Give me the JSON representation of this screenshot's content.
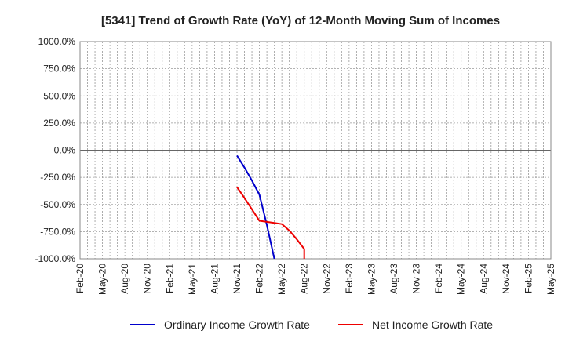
{
  "chart_data": {
    "type": "line",
    "title": "[5341]  Trend of Growth Rate (YoY) of 12-Month Moving Sum of Incomes",
    "xlabel": "",
    "ylabel": "",
    "ylim": [
      -1000,
      1000
    ],
    "y_ticks": [
      1000,
      750,
      500,
      250,
      0,
      -250,
      -500,
      -750,
      -1000
    ],
    "y_tick_labels": [
      "1000.0%",
      "750.0%",
      "500.0%",
      "250.0%",
      "0.0%",
      "-250.0%",
      "-500.0%",
      "-750.0%",
      "-1000.0%"
    ],
    "x_tick_labels": [
      "Feb-20",
      "May-20",
      "Aug-20",
      "Nov-20",
      "Feb-21",
      "May-21",
      "Aug-21",
      "Nov-21",
      "Feb-22",
      "May-22",
      "Aug-22",
      "Nov-22",
      "Feb-23",
      "May-23",
      "Aug-23",
      "Nov-23",
      "Feb-24",
      "May-24",
      "Aug-24",
      "Nov-24",
      "Feb-25",
      "May-25"
    ],
    "grid": true,
    "legend_position": "bottom",
    "series": [
      {
        "name": "Ordinary Income Growth Rate",
        "color": "#0000cc",
        "x": [
          "Nov-21",
          "Dec-21",
          "Jan-22",
          "Feb-22",
          "Mar-22",
          "Apr-22"
        ],
        "y": [
          -50,
          -160,
          -280,
          -410,
          -690,
          -1000
        ]
      },
      {
        "name": "Net Income Growth Rate",
        "color": "#ee0000",
        "x": [
          "Nov-21",
          "Dec-21",
          "Jan-22",
          "Feb-22",
          "Mar-22",
          "Apr-22",
          "May-22",
          "Jun-22",
          "Jul-22",
          "Aug-22",
          "Aug-22"
        ],
        "y": [
          -340,
          -440,
          -545,
          -650,
          -660,
          -670,
          -680,
          -740,
          -820,
          -910,
          -1000
        ]
      }
    ]
  }
}
